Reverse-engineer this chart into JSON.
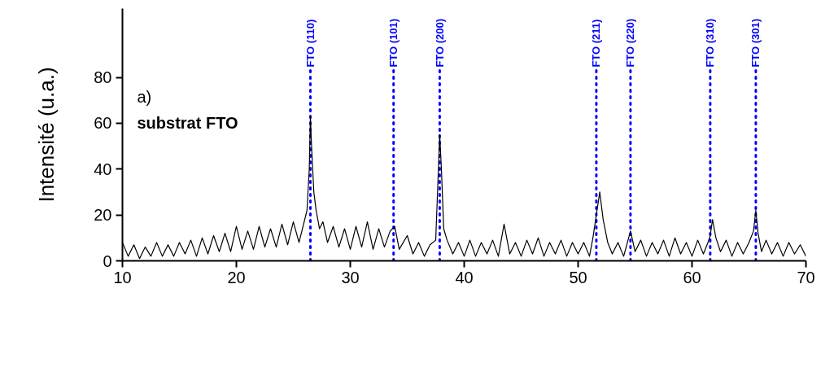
{
  "chart_data": {
    "type": "line",
    "ylabel": "Intensité (u.a.)",
    "annotations": [
      "a)",
      "substrat FTO"
    ],
    "xlim": [
      10,
      70
    ],
    "xticks": [
      10,
      20,
      30,
      40,
      50,
      60,
      70
    ],
    "ylim": [
      0,
      110
    ],
    "yticks": [
      0,
      20,
      40,
      60,
      80
    ],
    "grid": false,
    "series": [
      {
        "color": "#000000",
        "x": [
          10,
          10.5,
          11,
          11.5,
          12,
          12.5,
          13,
          13.5,
          14,
          14.5,
          15,
          15.5,
          16,
          16.5,
          17,
          17.5,
          18,
          18.5,
          19,
          19.5,
          20,
          20.5,
          21,
          21.5,
          22,
          22.5,
          23,
          23.5,
          24,
          24.5,
          25,
          25.5,
          26,
          26.2,
          26.4,
          26.5,
          26.6,
          26.8,
          27,
          27.3,
          27.6,
          28,
          28.5,
          29,
          29.5,
          30,
          30.5,
          31,
          31.5,
          32,
          32.5,
          33,
          33.5,
          33.9,
          34.3,
          35,
          35.5,
          36,
          36.5,
          37,
          37.5,
          37.7,
          37.85,
          38,
          38.2,
          38.5,
          39,
          39.5,
          40,
          40.5,
          41,
          41.5,
          42,
          42.5,
          43,
          43.5,
          44,
          44.5,
          45,
          45.5,
          46,
          46.5,
          47,
          47.5,
          48,
          48.5,
          49,
          49.5,
          50,
          50.5,
          51,
          51.3,
          51.6,
          51.9,
          52.2,
          52.6,
          53,
          53.5,
          54,
          54.6,
          55,
          55.5,
          56,
          56.5,
          57,
          57.5,
          58,
          58.5,
          59,
          59.5,
          60,
          60.5,
          61,
          61.4,
          61.6,
          61.8,
          62.1,
          62.5,
          63,
          63.5,
          64,
          64.5,
          65,
          65.4,
          65.6,
          65.8,
          66.1,
          66.5,
          67,
          67.5,
          68,
          68.5,
          69,
          69.5,
          70
        ],
        "values": [
          8,
          2,
          7,
          1,
          6,
          2,
          8,
          2,
          7,
          2,
          8,
          3,
          9,
          2,
          10,
          3,
          11,
          4,
          12,
          4,
          15,
          5,
          13,
          5,
          15,
          6,
          14,
          6,
          16,
          7,
          17,
          8,
          18,
          22,
          40,
          63,
          50,
          30,
          22,
          14,
          17,
          8,
          15,
          6,
          14,
          5,
          15,
          6,
          17,
          5,
          14,
          6,
          13,
          15,
          5,
          11,
          3,
          8,
          2,
          7,
          9,
          35,
          55,
          40,
          14,
          9,
          3,
          8,
          2,
          9,
          2,
          8,
          3,
          9,
          2,
          16,
          3,
          8,
          2,
          9,
          3,
          10,
          2,
          8,
          3,
          9,
          2,
          8,
          3,
          8,
          2,
          10,
          20,
          30,
          18,
          8,
          3,
          8,
          2,
          13,
          4,
          9,
          2,
          8,
          3,
          9,
          2,
          10,
          3,
          8,
          2,
          9,
          3,
          8,
          11,
          18,
          10,
          4,
          9,
          2,
          8,
          3,
          8,
          13,
          22,
          12,
          4,
          9,
          3,
          8,
          2,
          8,
          3,
          7,
          2
        ]
      }
    ],
    "ref_lines": [
      {
        "axis": "x",
        "value": 26.5,
        "label": "FTO (110)",
        "color": "#0000ff",
        "line_style": "dotted"
      },
      {
        "axis": "x",
        "value": 33.8,
        "label": "FTO (101)",
        "color": "#0000ff",
        "line_style": "dotted"
      },
      {
        "axis": "x",
        "value": 37.85,
        "label": "FTO (200)",
        "color": "#0000ff",
        "line_style": "dotted"
      },
      {
        "axis": "x",
        "value": 51.6,
        "label": "FTO (211)",
        "color": "#0000ff",
        "line_style": "dotted"
      },
      {
        "axis": "x",
        "value": 54.6,
        "label": "FTO (220)",
        "color": "#0000ff",
        "line_style": "dotted"
      },
      {
        "axis": "x",
        "value": 61.6,
        "label": "FTO (310)",
        "color": "#0000ff",
        "line_style": "dotted"
      },
      {
        "axis": "x",
        "value": 65.6,
        "label": "FTO (301)",
        "color": "#0000ff",
        "line_style": "dotted"
      }
    ]
  }
}
